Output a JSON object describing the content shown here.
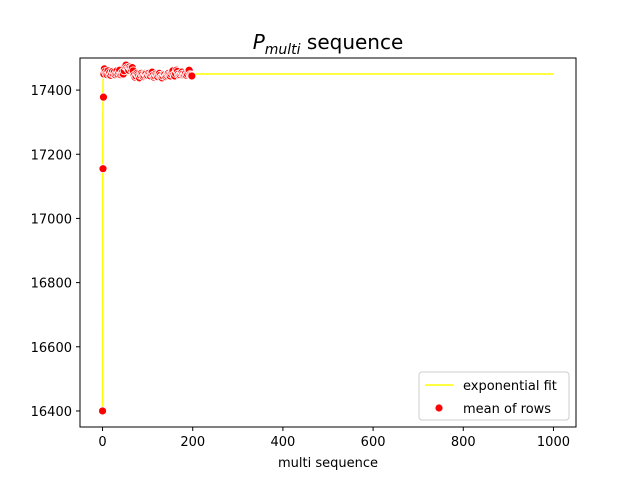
{
  "chart_data": {
    "type": "scatter",
    "title_main": "P",
    "title_sub": "multi",
    "title_rest": " sequence",
    "xlabel": "multi sequence",
    "ylabel": "",
    "xlim": [
      -50,
      1050
    ],
    "ylim": [
      16350,
      17500
    ],
    "xticks": [
      0,
      200,
      400,
      600,
      800,
      1000
    ],
    "yticks": [
      16400,
      16600,
      16800,
      17000,
      17200,
      17400
    ],
    "grid": false,
    "legend_position": "lower-right",
    "series": [
      {
        "name": "exponential fit",
        "kind": "line",
        "color": "#ffff00",
        "x": [
          0,
          0.3,
          1,
          2,
          3,
          5,
          10,
          50,
          200,
          500,
          1000
        ],
        "y": [
          16400,
          17100,
          17420,
          17449,
          17450,
          17450,
          17450,
          17450,
          17450,
          17450,
          17450
        ]
      },
      {
        "name": "mean of rows",
        "kind": "scatter",
        "color": "#ff0000",
        "edge_color": "#ffffff",
        "x": [
          0,
          1,
          2,
          3,
          4,
          6,
          8,
          10,
          12,
          14,
          16,
          18,
          20,
          22,
          24,
          26,
          28,
          30,
          32,
          34,
          36,
          38,
          40,
          42,
          44,
          46,
          48,
          50,
          52,
          54,
          56,
          58,
          60,
          62,
          64,
          66,
          68,
          70,
          72,
          74,
          76,
          78,
          80,
          82,
          84,
          86,
          88,
          90,
          92,
          94,
          96,
          98,
          100,
          102,
          104,
          106,
          108,
          110,
          112,
          114,
          116,
          118,
          120,
          122,
          124,
          126,
          128,
          130,
          132,
          134,
          136,
          138,
          140,
          142,
          144,
          146,
          148,
          150,
          152,
          154,
          156,
          158,
          160,
          162,
          164,
          166,
          168,
          170,
          172,
          174,
          176,
          178,
          180,
          182,
          184,
          186,
          188,
          190,
          192,
          194,
          196,
          198
        ],
        "y": [
          16400,
          17155,
          17378,
          17450,
          17466,
          17458,
          17452,
          17448,
          17460,
          17450,
          17455,
          17446,
          17452,
          17458,
          17450,
          17456,
          17448,
          17452,
          17460,
          17450,
          17455,
          17462,
          17448,
          17452,
          17456,
          17450,
          17460,
          17474,
          17478,
          17470,
          17466,
          17462,
          17472,
          17468,
          17464,
          17470,
          17460,
          17446,
          17440,
          17444,
          17452,
          17448,
          17444,
          17438,
          17446,
          17452,
          17448,
          17442,
          17446,
          17452,
          17450,
          17444,
          17446,
          17452,
          17448,
          17444,
          17450,
          17456,
          17446,
          17440,
          17444,
          17450,
          17446,
          17442,
          17448,
          17452,
          17446,
          17440,
          17438,
          17444,
          17450,
          17448,
          17442,
          17446,
          17450,
          17452,
          17448,
          17444,
          17450,
          17456,
          17460,
          17448,
          17444,
          17452,
          17462,
          17458,
          17450,
          17446,
          17448,
          17452,
          17456,
          17450,
          17446,
          17448,
          17452,
          17446,
          17450,
          17458,
          17462,
          17448,
          17446,
          17444
        ]
      }
    ]
  }
}
